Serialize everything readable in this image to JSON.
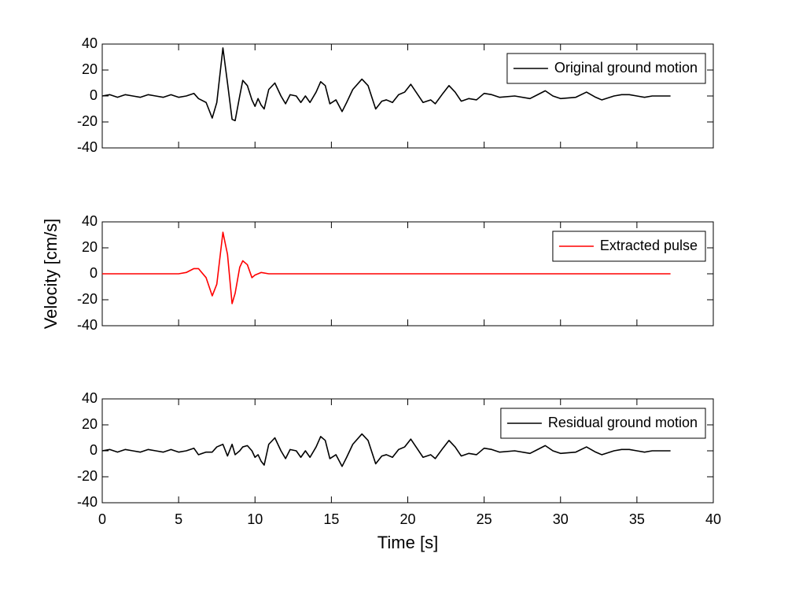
{
  "chart_data": [
    {
      "type": "line",
      "legend": "upper right",
      "xlim": [
        0,
        40
      ],
      "ylim": [
        -40,
        40
      ],
      "yticks": [
        -40,
        -20,
        0,
        20,
        40
      ],
      "x": [
        0,
        0.5,
        1,
        1.5,
        2,
        2.5,
        3,
        3.5,
        4,
        4.5,
        5,
        5.5,
        6,
        6.3,
        6.8,
        7.2,
        7.5,
        7.9,
        8.2,
        8.5,
        8.7,
        9,
        9.2,
        9.5,
        9.8,
        10,
        10.2,
        10.4,
        10.6,
        10.9,
        11.3,
        11.7,
        12,
        12.3,
        12.7,
        13,
        13.3,
        13.6,
        14,
        14.3,
        14.6,
        14.9,
        15.3,
        15.7,
        16,
        16.4,
        17,
        17.4,
        17.9,
        18.3,
        18.6,
        19,
        19.4,
        19.8,
        20.2,
        20.6,
        21,
        21.5,
        21.8,
        22.3,
        22.7,
        23.1,
        23.5,
        24,
        24.5,
        25,
        25.5,
        26,
        27,
        28,
        28.5,
        29,
        29.5,
        30,
        31,
        31.7,
        32.3,
        32.7,
        33.5,
        34,
        34.5,
        35,
        35.5,
        36,
        37.2
      ],
      "series": [
        {
          "name": "Original ground motion",
          "color": "#000000",
          "values": [
            0,
            1,
            -1,
            1,
            0,
            -1,
            1,
            0,
            -1,
            1,
            -1,
            0,
            2,
            -2,
            -5,
            -17,
            -5,
            37,
            10,
            -18,
            -19,
            0,
            12,
            8,
            -3,
            -8,
            -2,
            -7,
            -10,
            5,
            10,
            0,
            -6,
            1,
            0,
            -5,
            0,
            -5,
            3,
            11,
            8,
            -6,
            -3,
            -12,
            -5,
            5,
            13,
            8,
            -10,
            -4,
            -3,
            -5,
            1,
            3,
            9,
            2,
            -5,
            -3,
            -6,
            2,
            8,
            3,
            -4,
            -2,
            -3,
            2,
            1,
            -1,
            0,
            -2,
            1,
            4,
            0,
            -2,
            -1,
            3,
            -1,
            -3,
            0,
            1,
            1,
            0,
            -1,
            0,
            0
          ]
        }
      ]
    },
    {
      "type": "line",
      "legend": "upper right",
      "xlim": [
        0,
        40
      ],
      "ylim": [
        -40,
        40
      ],
      "yticks": [
        -40,
        -20,
        0,
        20,
        40
      ],
      "ylabel": "Velocity [cm/s]",
      "x": [
        0,
        5,
        5.5,
        6,
        6.3,
        6.8,
        7.2,
        7.5,
        7.9,
        8.2,
        8.5,
        8.7,
        9,
        9.2,
        9.5,
        9.8,
        10,
        10.4,
        10.9,
        37.2
      ],
      "series": [
        {
          "name": "Extracted pulse",
          "color": "#ff0000",
          "values": [
            0,
            0,
            1,
            4,
            4,
            -3,
            -17,
            -8,
            32,
            15,
            -23,
            -15,
            5,
            10,
            7,
            -3,
            -1,
            1,
            0,
            0
          ]
        }
      ]
    },
    {
      "type": "line",
      "legend": "upper right",
      "xlim": [
        0,
        40
      ],
      "ylim": [
        -40,
        40
      ],
      "yticks": [
        -40,
        -20,
        0,
        20,
        40
      ],
      "xticks": [
        0,
        5,
        10,
        15,
        20,
        25,
        30,
        35,
        40
      ],
      "xlabel": "Time [s]",
      "x": [
        0,
        0.5,
        1,
        1.5,
        2,
        2.5,
        3,
        3.5,
        4,
        4.5,
        5,
        5.5,
        6,
        6.3,
        6.8,
        7.2,
        7.5,
        7.9,
        8.2,
        8.5,
        8.7,
        9,
        9.2,
        9.5,
        9.8,
        10,
        10.2,
        10.4,
        10.6,
        10.9,
        11.3,
        11.7,
        12,
        12.3,
        12.7,
        13,
        13.3,
        13.6,
        14,
        14.3,
        14.6,
        14.9,
        15.3,
        15.7,
        16,
        16.4,
        17,
        17.4,
        17.9,
        18.3,
        18.6,
        19,
        19.4,
        19.8,
        20.2,
        20.6,
        21,
        21.5,
        21.8,
        22.3,
        22.7,
        23.1,
        23.5,
        24,
        24.5,
        25,
        25.5,
        26,
        27,
        28,
        28.5,
        29,
        29.5,
        30,
        31,
        31.7,
        32.3,
        32.7,
        33.5,
        34,
        34.5,
        35,
        35.5,
        36,
        37.2
      ],
      "series": [
        {
          "name": "Residual ground motion",
          "color": "#000000",
          "values": [
            0,
            1,
            -1,
            1,
            0,
            -1,
            1,
            0,
            -1,
            1,
            -1,
            0,
            2,
            -3,
            -1,
            -1,
            3,
            5,
            -4,
            5,
            -3,
            0,
            3,
            4,
            0,
            -5,
            -3,
            -8,
            -11,
            5,
            10,
            0,
            -6,
            1,
            0,
            -5,
            0,
            -5,
            3,
            11,
            8,
            -6,
            -3,
            -12,
            -5,
            5,
            13,
            8,
            -10,
            -4,
            -3,
            -5,
            1,
            3,
            9,
            2,
            -5,
            -3,
            -6,
            2,
            8,
            3,
            -4,
            -2,
            -3,
            2,
            1,
            -1,
            0,
            -2,
            1,
            4,
            0,
            -2,
            -1,
            3,
            -1,
            -3,
            0,
            1,
            1,
            0,
            -1,
            0,
            0
          ]
        }
      ]
    }
  ]
}
